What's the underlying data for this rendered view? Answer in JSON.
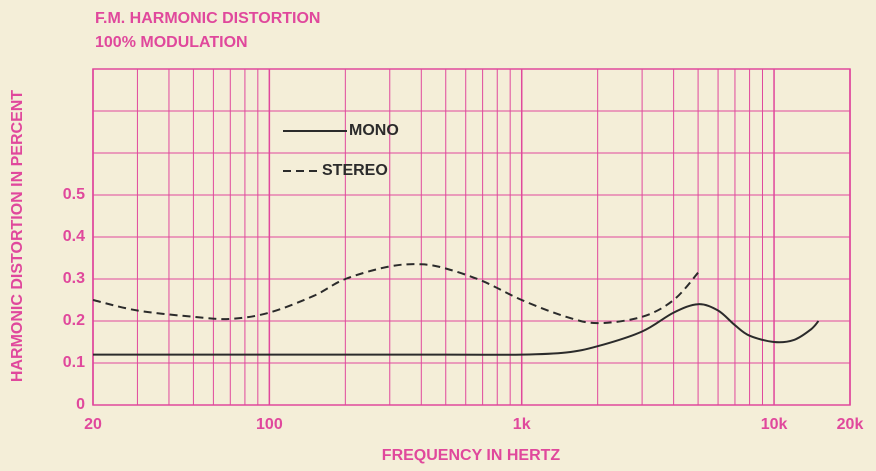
{
  "chart_data": {
    "type": "line",
    "title": "F.M. HARMONIC DISTORTION",
    "subtitle": "100% MODULATION",
    "x_label": "FREQUENCY IN HERTZ",
    "y_label": "HARMONIC DISTORTION IN PERCENT",
    "log_x": true,
    "grid": true,
    "grid_color": "#e0489c",
    "legend": "upper left",
    "xlim": [
      20,
      20000
    ],
    "ylim": [
      0,
      0.8
    ],
    "xticks": [
      20,
      100,
      {
        "value": 1000,
        "label": "1k"
      },
      {
        "value": 10000,
        "label": "10k"
      },
      {
        "value": 20000,
        "label": "20k"
      }
    ],
    "yticks": [
      0,
      0.1,
      0.2,
      0.3,
      0.4,
      0.5,
      {
        "value": 0.6,
        "label": null
      },
      {
        "value": 0.7,
        "label": null
      }
    ],
    "series": [
      {
        "name": "MONO",
        "color": "#2b2b2b",
        "dash": false,
        "x": [
          20,
          100,
          500,
          1000,
          1500,
          2000,
          3000,
          4000,
          5000,
          6000,
          7000,
          8000,
          10000,
          12000,
          14000,
          15000
        ],
        "values": [
          0.12,
          0.12,
          0.12,
          0.12,
          0.125,
          0.14,
          0.175,
          0.22,
          0.24,
          0.225,
          0.19,
          0.165,
          0.15,
          0.155,
          0.18,
          0.2
        ]
      },
      {
        "name": "STEREO",
        "color": "#2b2b2b",
        "dash": true,
        "x": [
          20,
          30,
          50,
          70,
          100,
          150,
          200,
          300,
          400,
          500,
          700,
          1000,
          1500,
          2000,
          3000,
          4000,
          5000
        ],
        "values": [
          0.25,
          0.225,
          0.21,
          0.205,
          0.22,
          0.26,
          0.3,
          0.33,
          0.335,
          0.325,
          0.295,
          0.25,
          0.21,
          0.195,
          0.21,
          0.25,
          0.315
        ]
      }
    ]
  }
}
